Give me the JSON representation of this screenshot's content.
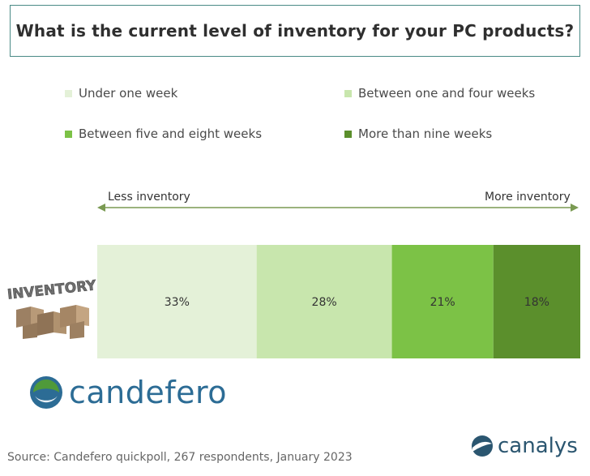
{
  "chart_data": {
    "type": "bar",
    "orientation": "horizontal-stacked",
    "title": "What is the current level of inventory for your PC products?",
    "categories": [
      "Under one week",
      "Between one and four weeks",
      "Between five and eight weeks",
      "More than nine weeks"
    ],
    "values": [
      33,
      28,
      21,
      18
    ],
    "value_labels": [
      "33%",
      "28%",
      "21%",
      "18%"
    ],
    "colors": [
      "#e4f1d8",
      "#c8e6ad",
      "#7cc246",
      "#5b8f2c"
    ],
    "legend": [
      "Under one week",
      "Between one and four weeks",
      "Between five and eight weeks",
      "More than nine weeks"
    ],
    "legend_placement": "top",
    "scale_left_label": "Less inventory",
    "scale_right_label": "More inventory",
    "image_text": "INVENTORY"
  },
  "source": "Source: Candefero quickpoll, 267 respondents, January 2023",
  "logos": {
    "candefero": "candefero",
    "canalys": "canalys"
  },
  "colors": {
    "title_border": "#4a8a86",
    "arrow": "#7a9a52",
    "candefero_blue": "#2c6c95",
    "candefero_green": "#4f9a3a"
  }
}
